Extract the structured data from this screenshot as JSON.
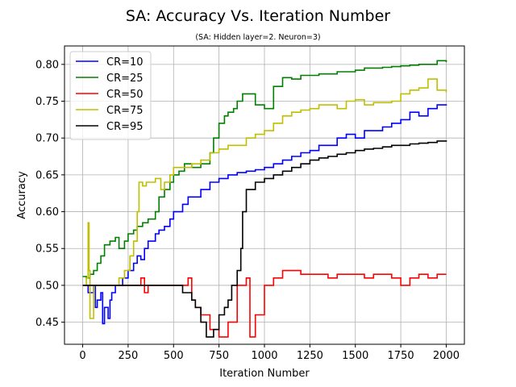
{
  "chart_data": {
    "type": "line",
    "title": "SA: Accuracy Vs. Iteration Number",
    "subtitle": "(SA: Hidden layer=2. Neuron=3)",
    "xlabel": "Iteration Number",
    "ylabel": "Accuracy",
    "xlim": [
      -100,
      2100
    ],
    "ylim": [
      0.42,
      0.825
    ],
    "xticks": [
      0,
      250,
      500,
      750,
      1000,
      1250,
      1500,
      1750,
      2000
    ],
    "yticks": [
      0.45,
      0.5,
      0.55,
      0.6,
      0.65,
      0.7,
      0.75,
      0.8
    ],
    "ytick_labels": [
      "0.45",
      "0.50",
      "0.55",
      "0.60",
      "0.65",
      "0.70",
      "0.75",
      "0.80"
    ],
    "grid": true,
    "legend_position": "top-left",
    "series": [
      {
        "name": "CR=10",
        "color": "#0000ff",
        "x": [
          0,
          30,
          60,
          70,
          80,
          100,
          110,
          120,
          140,
          150,
          160,
          180,
          200,
          220,
          250,
          280,
          300,
          320,
          340,
          360,
          400,
          420,
          450,
          480,
          500,
          550,
          580,
          600,
          650,
          700,
          750,
          800,
          850,
          900,
          950,
          1000,
          1050,
          1100,
          1150,
          1200,
          1250,
          1300,
          1350,
          1400,
          1450,
          1500,
          1550,
          1600,
          1650,
          1700,
          1750,
          1800,
          1850,
          1900,
          1950,
          2000
        ],
        "y": [
          0.5,
          0.49,
          0.5,
          0.47,
          0.48,
          0.49,
          0.448,
          0.47,
          0.455,
          0.48,
          0.49,
          0.5,
          0.5,
          0.51,
          0.52,
          0.53,
          0.54,
          0.535,
          0.55,
          0.56,
          0.57,
          0.575,
          0.58,
          0.59,
          0.6,
          0.61,
          0.62,
          0.62,
          0.63,
          0.64,
          0.645,
          0.65,
          0.653,
          0.655,
          0.657,
          0.66,
          0.665,
          0.67,
          0.675,
          0.68,
          0.683,
          0.69,
          0.69,
          0.7,
          0.705,
          0.7,
          0.71,
          0.71,
          0.715,
          0.72,
          0.725,
          0.735,
          0.73,
          0.74,
          0.745,
          0.746
        ]
      },
      {
        "name": "CR=25",
        "color": "#008000",
        "x": [
          0,
          20,
          40,
          60,
          80,
          100,
          120,
          150,
          180,
          200,
          230,
          250,
          280,
          300,
          330,
          360,
          400,
          420,
          450,
          480,
          500,
          530,
          560,
          600,
          650,
          700,
          720,
          750,
          780,
          800,
          830,
          850,
          880,
          900,
          950,
          1000,
          1050,
          1100,
          1150,
          1200,
          1250,
          1300,
          1400,
          1500,
          1550,
          1600,
          1650,
          1700,
          1750,
          1800,
          1850,
          1900,
          1950,
          2000
        ],
        "y": [
          0.512,
          0.51,
          0.515,
          0.52,
          0.53,
          0.54,
          0.555,
          0.56,
          0.565,
          0.55,
          0.56,
          0.57,
          0.575,
          0.58,
          0.585,
          0.59,
          0.6,
          0.62,
          0.63,
          0.64,
          0.65,
          0.655,
          0.665,
          0.66,
          0.665,
          0.68,
          0.7,
          0.72,
          0.73,
          0.735,
          0.74,
          0.75,
          0.76,
          0.76,
          0.745,
          0.74,
          0.77,
          0.782,
          0.78,
          0.785,
          0.785,
          0.787,
          0.79,
          0.792,
          0.795,
          0.795,
          0.796,
          0.797,
          0.798,
          0.799,
          0.8,
          0.8,
          0.805,
          0.803
        ]
      },
      {
        "name": "CR=50",
        "color": "#ff0000",
        "x": [
          0,
          150,
          200,
          250,
          300,
          320,
          340,
          360,
          400,
          500,
          560,
          580,
          600,
          620,
          650,
          700,
          750,
          800,
          850,
          900,
          920,
          950,
          1000,
          1050,
          1100,
          1150,
          1200,
          1300,
          1350,
          1400,
          1500,
          1550,
          1600,
          1700,
          1750,
          1800,
          1850,
          1900,
          1950,
          2000
        ],
        "y": [
          0.5,
          0.5,
          0.5,
          0.5,
          0.5,
          0.51,
          0.49,
          0.5,
          0.5,
          0.5,
          0.5,
          0.51,
          0.48,
          0.47,
          0.46,
          0.44,
          0.43,
          0.45,
          0.5,
          0.51,
          0.43,
          0.46,
          0.5,
          0.51,
          0.52,
          0.52,
          0.515,
          0.515,
          0.51,
          0.515,
          0.515,
          0.51,
          0.515,
          0.51,
          0.5,
          0.51,
          0.515,
          0.51,
          0.515,
          0.515
        ]
      },
      {
        "name": "CR=75",
        "color": "#bfbf00",
        "x": [
          0,
          20,
          30,
          35,
          40,
          60,
          100,
          150,
          200,
          230,
          260,
          280,
          300,
          310,
          330,
          350,
          400,
          430,
          450,
          480,
          500,
          550,
          600,
          650,
          700,
          750,
          800,
          850,
          900,
          950,
          1000,
          1050,
          1100,
          1150,
          1200,
          1250,
          1300,
          1400,
          1450,
          1500,
          1550,
          1600,
          1700,
          1750,
          1800,
          1850,
          1900,
          1950,
          2000
        ],
        "y": [
          0.5,
          0.51,
          0.585,
          0.52,
          0.455,
          0.5,
          0.5,
          0.5,
          0.51,
          0.52,
          0.54,
          0.56,
          0.6,
          0.64,
          0.635,
          0.64,
          0.645,
          0.63,
          0.64,
          0.65,
          0.66,
          0.66,
          0.665,
          0.67,
          0.68,
          0.685,
          0.69,
          0.69,
          0.7,
          0.705,
          0.71,
          0.72,
          0.73,
          0.735,
          0.738,
          0.74,
          0.745,
          0.74,
          0.75,
          0.752,
          0.745,
          0.748,
          0.75,
          0.76,
          0.765,
          0.768,
          0.78,
          0.765,
          0.762
        ]
      },
      {
        "name": "CR=95",
        "color": "#000000",
        "x": [
          0,
          100,
          200,
          300,
          400,
          500,
          550,
          600,
          620,
          650,
          680,
          700,
          720,
          750,
          780,
          800,
          820,
          850,
          870,
          880,
          900,
          950,
          1000,
          1050,
          1100,
          1150,
          1200,
          1250,
          1300,
          1350,
          1400,
          1450,
          1500,
          1550,
          1600,
          1650,
          1700,
          1750,
          1800,
          1850,
          1900,
          1950,
          2000
        ],
        "y": [
          0.5,
          0.5,
          0.5,
          0.5,
          0.5,
          0.5,
          0.49,
          0.48,
          0.47,
          0.45,
          0.43,
          0.43,
          0.44,
          0.46,
          0.47,
          0.48,
          0.5,
          0.52,
          0.55,
          0.6,
          0.63,
          0.64,
          0.645,
          0.65,
          0.655,
          0.66,
          0.665,
          0.67,
          0.673,
          0.675,
          0.678,
          0.68,
          0.683,
          0.685,
          0.686,
          0.688,
          0.69,
          0.69,
          0.692,
          0.693,
          0.694,
          0.696,
          0.695
        ]
      }
    ]
  }
}
